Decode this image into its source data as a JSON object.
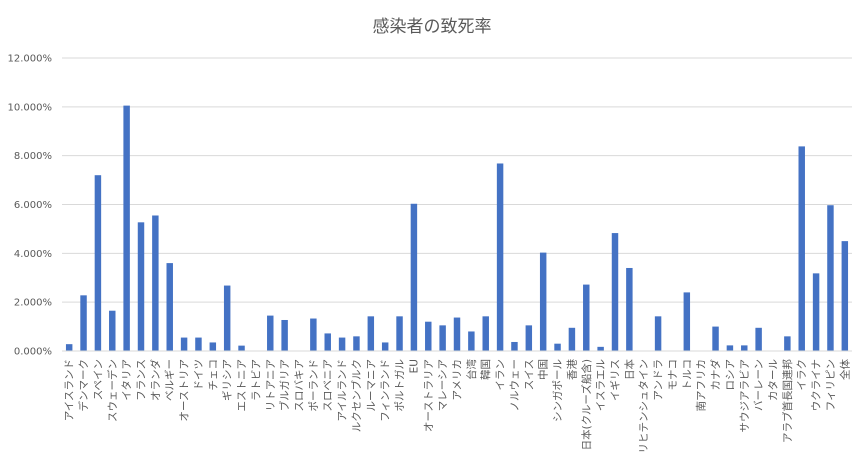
{
  "chart_data": {
    "type": "bar",
    "title": "感染者の致死率",
    "xlabel": "",
    "ylabel": "",
    "ylim": [
      0,
      12
    ],
    "yticks": [
      "0.000%",
      "2.000%",
      "4.000%",
      "6.000%",
      "8.000%",
      "10.000%",
      "12.000%"
    ],
    "grid": true,
    "legend": "none",
    "bar_color": "#4472c4",
    "grid_color": "#d9d9d9",
    "categories": [
      "アイスランド",
      "デンマーク",
      "スペイン",
      "スウェーデン",
      "イタリア",
      "フランス",
      "オランダ",
      "ベルギー",
      "オーストリア",
      "ドイツ",
      "チェコ",
      "ギリシア",
      "エストニア",
      "ラトビア",
      "リトアニア",
      "ブルガリア",
      "スロバキア",
      "ポーランド",
      "スロベニア",
      "アイルランド",
      "ルクセンブルク",
      "ルーマニア",
      "フィンランド",
      "ポルトガル",
      "EU",
      "オーストラリア",
      "マレーシア",
      "アメリカ",
      "台湾",
      "韓国",
      "イラン",
      "ノルウェー",
      "スイス",
      "中国",
      "シンガポール",
      "香港",
      "日本(クルーズ船含)",
      "イスラエル",
      "イギリス",
      "日本",
      "リヒテンシュタイン",
      "アンドラ",
      "モナコ",
      "トルコ",
      "南アフリカ",
      "カナダ",
      "ロシア",
      "サウジアラビア",
      "バーレーン",
      "カタール",
      "アラブ首長国連邦",
      "イラク",
      "ウクライナ",
      "フィリピン",
      "全体"
    ],
    "values": [
      0.28,
      2.28,
      7.2,
      1.65,
      10.05,
      5.27,
      5.55,
      3.6,
      0.55,
      0.55,
      0.35,
      2.68,
      0.22,
      0.0,
      1.45,
      1.27,
      0.0,
      1.33,
      0.72,
      0.55,
      0.6,
      1.42,
      0.35,
      1.42,
      6.03,
      1.2,
      1.05,
      1.37,
      0.8,
      1.42,
      7.68,
      0.37,
      1.05,
      4.03,
      0.3,
      0.95,
      2.72,
      0.17,
      4.83,
      3.4,
      0.0,
      1.42,
      0.0,
      2.4,
      0.0,
      1.0,
      0.23,
      0.23,
      0.95,
      0.0,
      0.6,
      8.38,
      3.18,
      5.97,
      4.5
    ]
  }
}
